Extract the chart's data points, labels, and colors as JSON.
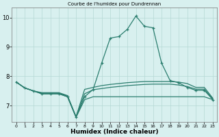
{
  "title": "Courbe de l'humidex pour Dundrennan",
  "xlabel": "Humidex (Indice chaleur)",
  "x": [
    0,
    1,
    2,
    3,
    4,
    5,
    6,
    7,
    8,
    9,
    10,
    11,
    12,
    13,
    14,
    15,
    16,
    17,
    18,
    19,
    20,
    21,
    22,
    23
  ],
  "line_peak": [
    7.8,
    7.6,
    7.5,
    7.4,
    7.4,
    7.4,
    7.3,
    6.6,
    7.3,
    7.55,
    8.45,
    9.3,
    9.35,
    9.6,
    10.05,
    9.7,
    9.65,
    8.45,
    7.85,
    7.78,
    7.62,
    7.52,
    7.52,
    7.2
  ],
  "line_flat1": [
    7.8,
    7.6,
    7.5,
    7.4,
    7.4,
    7.4,
    7.3,
    6.6,
    7.2,
    7.3,
    7.3,
    7.3,
    7.3,
    7.3,
    7.3,
    7.3,
    7.3,
    7.3,
    7.3,
    7.3,
    7.3,
    7.3,
    7.3,
    7.2
  ],
  "line_upper": [
    7.8,
    7.6,
    7.5,
    7.44,
    7.44,
    7.44,
    7.34,
    6.62,
    7.55,
    7.62,
    7.68,
    7.72,
    7.75,
    7.78,
    7.8,
    7.82,
    7.82,
    7.82,
    7.82,
    7.8,
    7.75,
    7.62,
    7.62,
    7.25
  ],
  "line_mid": [
    7.8,
    7.6,
    7.5,
    7.42,
    7.42,
    7.42,
    7.32,
    6.61,
    7.4,
    7.54,
    7.58,
    7.62,
    7.65,
    7.68,
    7.7,
    7.72,
    7.73,
    7.73,
    7.73,
    7.7,
    7.65,
    7.56,
    7.56,
    7.22
  ],
  "line_color": "#2a7d6e",
  "bg_color": "#d8f0ef",
  "grid_color": "#b5d8d4",
  "ylim": [
    6.45,
    10.35
  ],
  "yticks": [
    7,
    8,
    9,
    10
  ],
  "xlim": [
    -0.5,
    23.5
  ]
}
